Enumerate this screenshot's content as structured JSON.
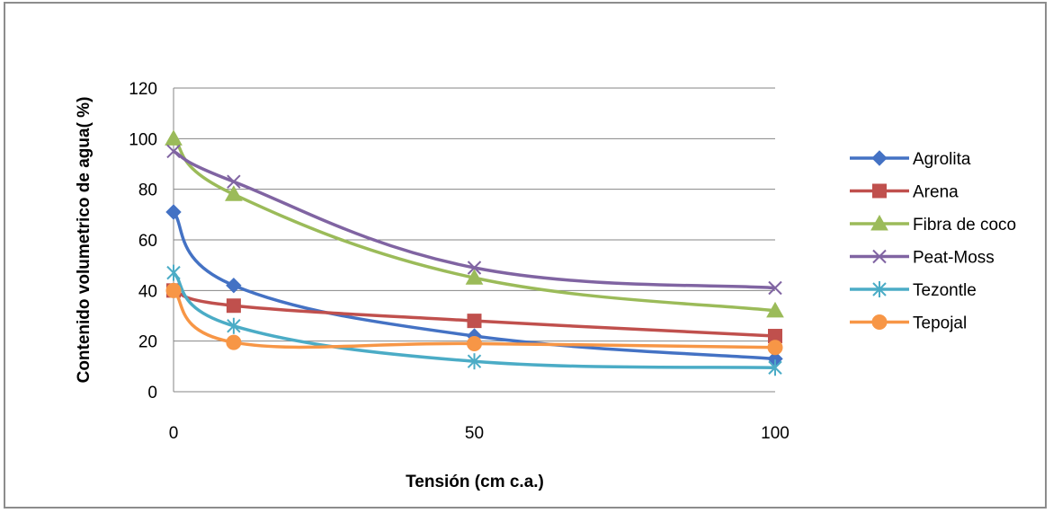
{
  "chart_data": {
    "type": "line",
    "title": "",
    "xlabel": "Tensión (cm  c.a.)",
    "ylabel": "Contenido volumetrico de agua( %)",
    "xlim": [
      0,
      100
    ],
    "ylim": [
      0,
      120
    ],
    "xticks": [
      "0",
      "50",
      "100"
    ],
    "yticks": [
      "0",
      "20",
      "40",
      "60",
      "80",
      "100",
      "120"
    ],
    "grid": "horizontal",
    "smooth": true,
    "legend_position": "right",
    "series": [
      {
        "name": "Agrolita",
        "color": "#4472C4",
        "marker": "diamond",
        "x": [
          0,
          10,
          50,
          100
        ],
        "y": [
          71,
          42,
          22,
          13
        ]
      },
      {
        "name": "Arena",
        "color": "#C0504D",
        "marker": "square",
        "x": [
          0,
          10,
          50,
          100
        ],
        "y": [
          40,
          34,
          28,
          22
        ]
      },
      {
        "name": "Fibra de coco",
        "color": "#9BBB59",
        "marker": "triangle",
        "x": [
          0,
          10,
          50,
          100
        ],
        "y": [
          100,
          78,
          45,
          32
        ]
      },
      {
        "name": "Peat-Moss",
        "color": "#8064A2",
        "marker": "x",
        "x": [
          0,
          10,
          50,
          100
        ],
        "y": [
          95,
          83,
          49,
          41
        ]
      },
      {
        "name": "Tezontle",
        "color": "#4BACC6",
        "marker": "star",
        "x": [
          0,
          10,
          50,
          100
        ],
        "y": [
          47,
          26,
          12,
          9.5
        ]
      },
      {
        "name": "Tepojal",
        "color": "#F79646",
        "marker": "circle",
        "x": [
          0,
          10,
          50,
          100
        ],
        "y": [
          40,
          19.5,
          19,
          17.5
        ]
      }
    ]
  }
}
